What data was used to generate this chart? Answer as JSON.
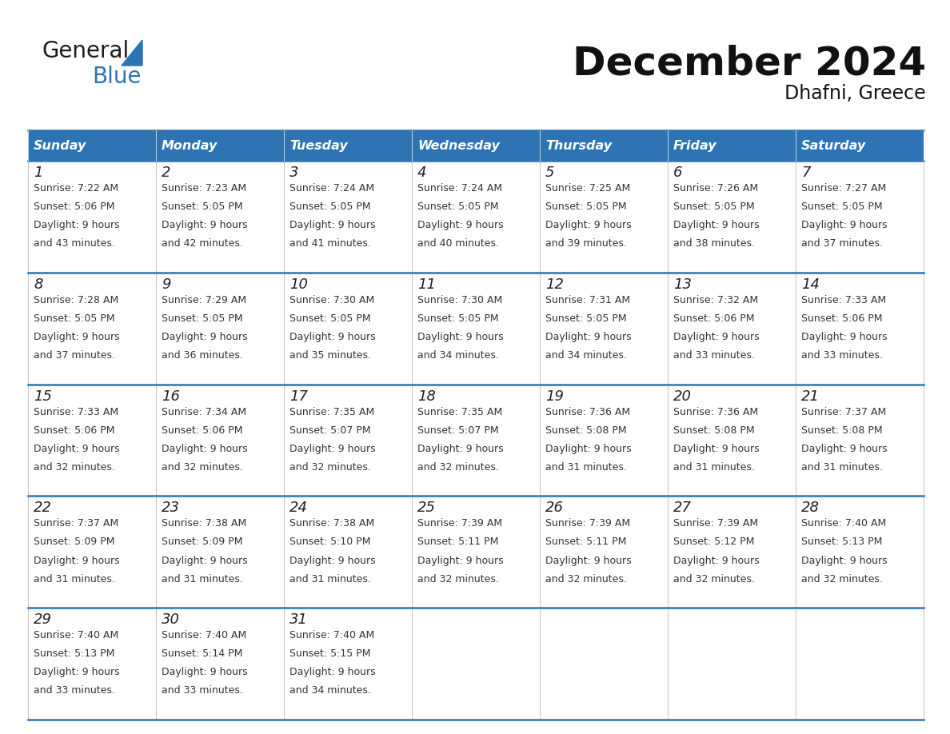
{
  "title": "December 2024",
  "subtitle": "Dhafni, Greece",
  "header_color": "#2E74B5",
  "header_text_color": "#FFFFFF",
  "days_of_week": [
    "Sunday",
    "Monday",
    "Tuesday",
    "Wednesday",
    "Thursday",
    "Friday",
    "Saturday"
  ],
  "bg_color": "#FFFFFF",
  "cell_bg": "#FFFFFF",
  "row_line_color": "#2E74B5",
  "grid_line_color": "#AAAAAA",
  "day_num_color": "#222222",
  "text_color": "#333333",
  "calendar": [
    [
      {
        "day": 1,
        "sunrise": "7:22 AM",
        "sunset": "5:06 PM",
        "daylight": "9 hours and 43 minutes."
      },
      {
        "day": 2,
        "sunrise": "7:23 AM",
        "sunset": "5:05 PM",
        "daylight": "9 hours and 42 minutes."
      },
      {
        "day": 3,
        "sunrise": "7:24 AM",
        "sunset": "5:05 PM",
        "daylight": "9 hours and 41 minutes."
      },
      {
        "day": 4,
        "sunrise": "7:24 AM",
        "sunset": "5:05 PM",
        "daylight": "9 hours and 40 minutes."
      },
      {
        "day": 5,
        "sunrise": "7:25 AM",
        "sunset": "5:05 PM",
        "daylight": "9 hours and 39 minutes."
      },
      {
        "day": 6,
        "sunrise": "7:26 AM",
        "sunset": "5:05 PM",
        "daylight": "9 hours and 38 minutes."
      },
      {
        "day": 7,
        "sunrise": "7:27 AM",
        "sunset": "5:05 PM",
        "daylight": "9 hours and 37 minutes."
      }
    ],
    [
      {
        "day": 8,
        "sunrise": "7:28 AM",
        "sunset": "5:05 PM",
        "daylight": "9 hours and 37 minutes."
      },
      {
        "day": 9,
        "sunrise": "7:29 AM",
        "sunset": "5:05 PM",
        "daylight": "9 hours and 36 minutes."
      },
      {
        "day": 10,
        "sunrise": "7:30 AM",
        "sunset": "5:05 PM",
        "daylight": "9 hours and 35 minutes."
      },
      {
        "day": 11,
        "sunrise": "7:30 AM",
        "sunset": "5:05 PM",
        "daylight": "9 hours and 34 minutes."
      },
      {
        "day": 12,
        "sunrise": "7:31 AM",
        "sunset": "5:05 PM",
        "daylight": "9 hours and 34 minutes."
      },
      {
        "day": 13,
        "sunrise": "7:32 AM",
        "sunset": "5:06 PM",
        "daylight": "9 hours and 33 minutes."
      },
      {
        "day": 14,
        "sunrise": "7:33 AM",
        "sunset": "5:06 PM",
        "daylight": "9 hours and 33 minutes."
      }
    ],
    [
      {
        "day": 15,
        "sunrise": "7:33 AM",
        "sunset": "5:06 PM",
        "daylight": "9 hours and 32 minutes."
      },
      {
        "day": 16,
        "sunrise": "7:34 AM",
        "sunset": "5:06 PM",
        "daylight": "9 hours and 32 minutes."
      },
      {
        "day": 17,
        "sunrise": "7:35 AM",
        "sunset": "5:07 PM",
        "daylight": "9 hours and 32 minutes."
      },
      {
        "day": 18,
        "sunrise": "7:35 AM",
        "sunset": "5:07 PM",
        "daylight": "9 hours and 32 minutes."
      },
      {
        "day": 19,
        "sunrise": "7:36 AM",
        "sunset": "5:08 PM",
        "daylight": "9 hours and 31 minutes."
      },
      {
        "day": 20,
        "sunrise": "7:36 AM",
        "sunset": "5:08 PM",
        "daylight": "9 hours and 31 minutes."
      },
      {
        "day": 21,
        "sunrise": "7:37 AM",
        "sunset": "5:08 PM",
        "daylight": "9 hours and 31 minutes."
      }
    ],
    [
      {
        "day": 22,
        "sunrise": "7:37 AM",
        "sunset": "5:09 PM",
        "daylight": "9 hours and 31 minutes."
      },
      {
        "day": 23,
        "sunrise": "7:38 AM",
        "sunset": "5:09 PM",
        "daylight": "9 hours and 31 minutes."
      },
      {
        "day": 24,
        "sunrise": "7:38 AM",
        "sunset": "5:10 PM",
        "daylight": "9 hours and 31 minutes."
      },
      {
        "day": 25,
        "sunrise": "7:39 AM",
        "sunset": "5:11 PM",
        "daylight": "9 hours and 32 minutes."
      },
      {
        "day": 26,
        "sunrise": "7:39 AM",
        "sunset": "5:11 PM",
        "daylight": "9 hours and 32 minutes."
      },
      {
        "day": 27,
        "sunrise": "7:39 AM",
        "sunset": "5:12 PM",
        "daylight": "9 hours and 32 minutes."
      },
      {
        "day": 28,
        "sunrise": "7:40 AM",
        "sunset": "5:13 PM",
        "daylight": "9 hours and 32 minutes."
      }
    ],
    [
      {
        "day": 29,
        "sunrise": "7:40 AM",
        "sunset": "5:13 PM",
        "daylight": "9 hours and 33 minutes."
      },
      {
        "day": 30,
        "sunrise": "7:40 AM",
        "sunset": "5:14 PM",
        "daylight": "9 hours and 33 minutes."
      },
      {
        "day": 31,
        "sunrise": "7:40 AM",
        "sunset": "5:15 PM",
        "daylight": "9 hours and 34 minutes."
      },
      null,
      null,
      null,
      null
    ]
  ]
}
